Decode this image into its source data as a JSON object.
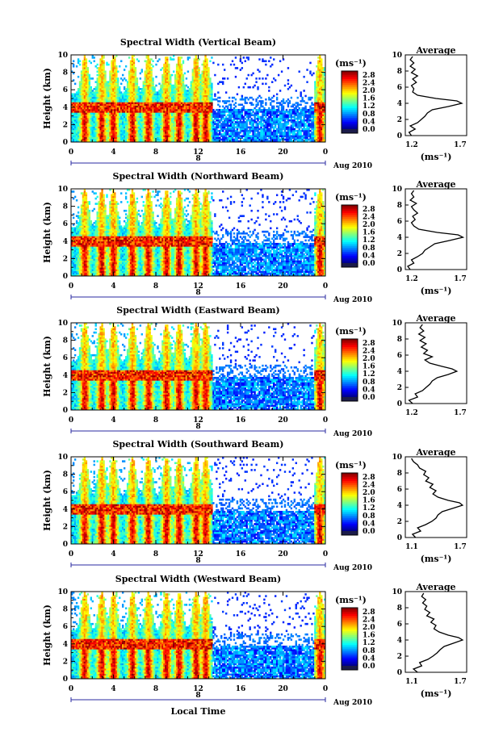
{
  "chart_data": [
    {
      "type": "heatmap",
      "title": "Spectral Width (Vertical Beam)",
      "ylabel": "Height (km)",
      "x_ticks": [
        "0",
        "4",
        "8",
        "12",
        "16",
        "20",
        "0"
      ],
      "y_ticks": [
        "0",
        "2",
        "4",
        "6",
        "8",
        "10"
      ],
      "xlim": [
        0,
        24
      ],
      "ylim": [
        0,
        10
      ],
      "date_day": "8",
      "date_label": "Aug 2010",
      "colorbar": {
        "unit": "(ms⁻¹)",
        "ticks": [
          "0.0",
          "0.4",
          "0.8",
          "1.2",
          "1.6",
          "2.0",
          "2.4",
          "2.8"
        ],
        "range": [
          0,
          3.0
        ]
      },
      "average": {
        "title": "Average",
        "xlabel": "(ms⁻¹)",
        "xlim": [
          1.2,
          1.7
        ],
        "x_ticks": [
          "1.2",
          "1.7"
        ],
        "y_ticks": [
          "0",
          "2",
          "4",
          "6",
          "8",
          "10"
        ],
        "profile": [
          [
            0.0,
            1.25
          ],
          [
            0.4,
            1.23
          ],
          [
            0.8,
            1.28
          ],
          [
            1.2,
            1.24
          ],
          [
            1.6,
            1.3
          ],
          [
            2.0,
            1.33
          ],
          [
            2.4,
            1.36
          ],
          [
            2.8,
            1.38
          ],
          [
            3.2,
            1.42
          ],
          [
            3.6,
            1.55
          ],
          [
            4.0,
            1.66
          ],
          [
            4.3,
            1.62
          ],
          [
            4.6,
            1.45
          ],
          [
            5.0,
            1.3
          ],
          [
            5.4,
            1.26
          ],
          [
            5.8,
            1.27
          ],
          [
            6.2,
            1.25
          ],
          [
            6.6,
            1.29
          ],
          [
            7.0,
            1.26
          ],
          [
            7.4,
            1.3
          ],
          [
            7.8,
            1.25
          ],
          [
            8.2,
            1.28
          ],
          [
            8.6,
            1.24
          ],
          [
            9.0,
            1.27
          ],
          [
            9.4,
            1.24
          ],
          [
            9.8,
            1.26
          ]
        ]
      }
    },
    {
      "type": "heatmap",
      "title": "Spectral Width (Northward Beam)",
      "ylabel": "Height (km)",
      "x_ticks": [
        "0",
        "4",
        "8",
        "12",
        "16",
        "20",
        "0"
      ],
      "y_ticks": [
        "0",
        "2",
        "4",
        "6",
        "8",
        "10"
      ],
      "xlim": [
        0,
        24
      ],
      "ylim": [
        0,
        10
      ],
      "date_day": "8",
      "date_label": "Aug 2010",
      "colorbar": {
        "unit": "(ms⁻¹)",
        "ticks": [
          "0.0",
          "0.4",
          "0.8",
          "1.2",
          "1.6",
          "2.0",
          "2.4",
          "2.8"
        ],
        "range": [
          0,
          3.0
        ]
      },
      "average": {
        "title": "Average",
        "xlabel": "(ms⁻¹)",
        "xlim": [
          1.2,
          1.7
        ],
        "x_ticks": [
          "1.2",
          "1.7"
        ],
        "y_ticks": [
          "0",
          "2",
          "4",
          "6",
          "8",
          "10"
        ],
        "profile": [
          [
            0.0,
            1.24
          ],
          [
            0.4,
            1.22
          ],
          [
            0.8,
            1.27
          ],
          [
            1.2,
            1.25
          ],
          [
            1.6,
            1.3
          ],
          [
            2.0,
            1.34
          ],
          [
            2.4,
            1.36
          ],
          [
            2.8,
            1.4
          ],
          [
            3.2,
            1.44
          ],
          [
            3.6,
            1.56
          ],
          [
            4.0,
            1.67
          ],
          [
            4.3,
            1.63
          ],
          [
            4.6,
            1.46
          ],
          [
            5.0,
            1.31
          ],
          [
            5.4,
            1.27
          ],
          [
            5.8,
            1.25
          ],
          [
            6.2,
            1.28
          ],
          [
            6.6,
            1.26
          ],
          [
            7.0,
            1.3
          ],
          [
            7.4,
            1.27
          ],
          [
            7.8,
            1.25
          ],
          [
            8.2,
            1.29
          ],
          [
            8.6,
            1.24
          ],
          [
            9.0,
            1.27
          ],
          [
            9.4,
            1.25
          ],
          [
            9.8,
            1.27
          ]
        ]
      }
    },
    {
      "type": "heatmap",
      "title": "Spectral Width (Eastward Beam)",
      "ylabel": "Height (km)",
      "x_ticks": [
        "0",
        "4",
        "8",
        "12",
        "16",
        "20",
        "0"
      ],
      "y_ticks": [
        "0",
        "2",
        "4",
        "6",
        "8",
        "10"
      ],
      "xlim": [
        0,
        24
      ],
      "ylim": [
        0,
        10
      ],
      "date_day": "8",
      "date_label": "Aug 2010",
      "colorbar": {
        "unit": "(ms⁻¹)",
        "ticks": [
          "0.0",
          "0.4",
          "0.8",
          "1.2",
          "1.6",
          "2.0",
          "2.4",
          "2.8"
        ],
        "range": [
          0,
          3.0
        ]
      },
      "average": {
        "title": "Average",
        "xlabel": "",
        "xlim": [
          1.2,
          1.7
        ],
        "x_ticks": [
          "1.2",
          "1.7"
        ],
        "y_ticks": [
          "0",
          "2",
          "4",
          "6",
          "8",
          "10"
        ],
        "profile": [
          [
            0.0,
            1.26
          ],
          [
            0.4,
            1.23
          ],
          [
            0.8,
            1.3
          ],
          [
            1.2,
            1.28
          ],
          [
            1.6,
            1.34
          ],
          [
            2.0,
            1.37
          ],
          [
            2.4,
            1.4
          ],
          [
            2.8,
            1.42
          ],
          [
            3.2,
            1.46
          ],
          [
            3.6,
            1.55
          ],
          [
            4.0,
            1.62
          ],
          [
            4.3,
            1.58
          ],
          [
            4.6,
            1.5
          ],
          [
            5.0,
            1.4
          ],
          [
            5.4,
            1.36
          ],
          [
            5.8,
            1.42
          ],
          [
            6.2,
            1.35
          ],
          [
            6.6,
            1.38
          ],
          [
            7.0,
            1.33
          ],
          [
            7.4,
            1.37
          ],
          [
            7.8,
            1.32
          ],
          [
            8.2,
            1.36
          ],
          [
            8.6,
            1.31
          ],
          [
            9.0,
            1.35
          ],
          [
            9.4,
            1.32
          ],
          [
            9.8,
            1.34
          ]
        ]
      }
    },
    {
      "type": "heatmap",
      "title": "Spectral Width (Southward Beam)",
      "ylabel": "Height (km)",
      "x_ticks": [
        "0",
        "4",
        "8",
        "12",
        "16",
        "20",
        "0"
      ],
      "y_ticks": [
        "0",
        "2",
        "4",
        "6",
        "8",
        "10"
      ],
      "xlim": [
        0,
        24
      ],
      "ylim": [
        0,
        10
      ],
      "date_day": "8",
      "date_label": "Aug 2010",
      "colorbar": {
        "unit": "(ms⁻¹)",
        "ticks": [
          "0.0",
          "0.4",
          "0.8",
          "1.2",
          "1.6",
          "2.0",
          "2.4",
          "2.8"
        ],
        "range": [
          0,
          3.0
        ]
      },
      "average": {
        "title": "Average",
        "xlabel": "(ms⁻¹)",
        "xlim": [
          1.1,
          1.7
        ],
        "x_ticks": [
          "1.1",
          "1.7"
        ],
        "y_ticks": [
          "0",
          "2",
          "4",
          "6",
          "8",
          "10"
        ],
        "profile": [
          [
            0.0,
            1.2
          ],
          [
            0.4,
            1.17
          ],
          [
            0.8,
            1.25
          ],
          [
            1.2,
            1.22
          ],
          [
            1.6,
            1.3
          ],
          [
            2.0,
            1.36
          ],
          [
            2.4,
            1.4
          ],
          [
            2.8,
            1.42
          ],
          [
            3.2,
            1.46
          ],
          [
            3.6,
            1.56
          ],
          [
            4.0,
            1.66
          ],
          [
            4.3,
            1.63
          ],
          [
            4.6,
            1.52
          ],
          [
            5.0,
            1.42
          ],
          [
            5.4,
            1.37
          ],
          [
            5.8,
            1.4
          ],
          [
            6.2,
            1.34
          ],
          [
            6.6,
            1.37
          ],
          [
            7.0,
            1.3
          ],
          [
            7.4,
            1.33
          ],
          [
            7.8,
            1.28
          ],
          [
            8.2,
            1.3
          ],
          [
            8.6,
            1.24
          ],
          [
            9.0,
            1.22
          ],
          [
            9.4,
            1.18
          ],
          [
            9.8,
            1.16
          ]
        ]
      }
    },
    {
      "type": "heatmap",
      "title": "Spectral Width (Westward Beam)",
      "ylabel": "Height (km)",
      "xlabel": "Local Time",
      "x_ticks": [
        "0",
        "4",
        "8",
        "12",
        "16",
        "20",
        "0"
      ],
      "y_ticks": [
        "0",
        "2",
        "4",
        "6",
        "8",
        "10"
      ],
      "xlim": [
        0,
        24
      ],
      "ylim": [
        0,
        10
      ],
      "date_day": "8",
      "date_label": "Aug 2010",
      "colorbar": {
        "unit": "(ms⁻¹)",
        "ticks": [
          "0.0",
          "0.4",
          "0.8",
          "1.2",
          "1.6",
          "2.0",
          "2.4",
          "2.8"
        ],
        "range": [
          0,
          3.0
        ]
      },
      "average": {
        "title": "Average",
        "xlabel": "(ms⁻¹)",
        "xlim": [
          1.1,
          1.7
        ],
        "x_ticks": [
          "1.1",
          "1.7"
        ],
        "y_ticks": [
          "0",
          "2",
          "4",
          "6",
          "8",
          "10"
        ],
        "profile": [
          [
            0.0,
            1.22
          ],
          [
            0.4,
            1.18
          ],
          [
            0.8,
            1.26
          ],
          [
            1.2,
            1.24
          ],
          [
            1.6,
            1.32
          ],
          [
            2.0,
            1.37
          ],
          [
            2.4,
            1.41
          ],
          [
            2.8,
            1.44
          ],
          [
            3.2,
            1.48
          ],
          [
            3.6,
            1.57
          ],
          [
            4.0,
            1.66
          ],
          [
            4.3,
            1.62
          ],
          [
            4.6,
            1.52
          ],
          [
            5.0,
            1.43
          ],
          [
            5.4,
            1.38
          ],
          [
            5.8,
            1.4
          ],
          [
            6.2,
            1.35
          ],
          [
            6.6,
            1.38
          ],
          [
            7.0,
            1.31
          ],
          [
            7.4,
            1.34
          ],
          [
            7.8,
            1.29
          ],
          [
            8.2,
            1.31
          ],
          [
            8.6,
            1.27
          ],
          [
            9.0,
            1.3
          ],
          [
            9.4,
            1.26
          ],
          [
            9.8,
            1.28
          ]
        ]
      }
    }
  ]
}
